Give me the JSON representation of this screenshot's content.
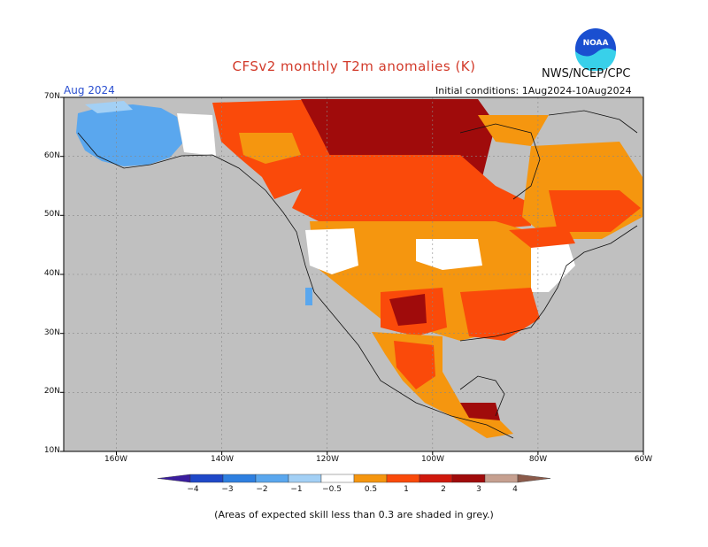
{
  "title": "CFSv2 monthly T2m anomalies (K)",
  "agency": "NWS/NCEP/CPC",
  "logo_text": "NOAA",
  "month_label": "Aug 2024",
  "init_conditions": "Initial conditions: 1Aug2024-10Aug2024",
  "lat_labels": [
    "70N",
    "60N",
    "50N",
    "40N",
    "30N",
    "20N",
    "10N"
  ],
  "lon_labels": [
    "160W",
    "140W",
    "120W",
    "100W",
    "80W",
    "60W"
  ],
  "colorbar": {
    "labels": [
      "−4",
      "−3",
      "−2",
      "−1",
      "−0.5",
      "0.5",
      "1",
      "2",
      "3",
      "4"
    ],
    "colors": [
      "#3a1d9e",
      "#1f48c8",
      "#2e7fe0",
      "#5aa7ee",
      "#a3d0f5",
      "#ffffff",
      "#f5960f",
      "#fa4a0a",
      "#d0180c",
      "#a00b0b",
      "#c6a090",
      "#8b5a4a"
    ]
  },
  "footnote": "(Areas of expected skill less than 0.3 are shaded in grey.)",
  "colors": {
    "grey_low_skill": "#c0c0c0",
    "ocean": "#c0c0c0",
    "warm_05_1": "#f5960f",
    "warm_1_2": "#fa4a0a",
    "warm_2_3": "#a00b0b",
    "cool_05_1": "#a3d0f5",
    "cool_1_2": "#5aa7ee",
    "neutral": "#ffffff"
  }
}
